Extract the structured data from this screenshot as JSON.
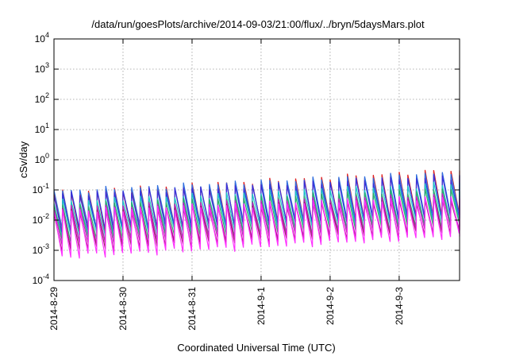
{
  "chart_data": {
    "type": "line",
    "title": "/data/run/goesPlots/archive/2014-09-03/21:00/flux/../bryn/5daysMars.plot",
    "xlabel": "Coordinated Universal Time (UTC)",
    "ylabel": "cSv/day",
    "y_scale": "log",
    "ylim": [
      0.0001,
      10000
    ],
    "y_ticks": [
      {
        "base": "10",
        "exp": "-4",
        "value": 0.0001
      },
      {
        "base": "10",
        "exp": "-3",
        "value": 0.001
      },
      {
        "base": "10",
        "exp": "-2",
        "value": 0.01
      },
      {
        "base": "10",
        "exp": "-1",
        "value": 0.1
      },
      {
        "base": "10",
        "exp": "0",
        "value": 1
      },
      {
        "base": "10",
        "exp": "1",
        "value": 10
      },
      {
        "base": "10",
        "exp": "2",
        "value": 100
      },
      {
        "base": "10",
        "exp": "3",
        "value": 1000
      },
      {
        "base": "10",
        "exp": "4",
        "value": 10000
      }
    ],
    "xlim": [
      "2014-08-29",
      "2014-09-03T21:00"
    ],
    "x_ticks": [
      {
        "label": "2014-8-29",
        "value": "2014-08-29"
      },
      {
        "label": "2014-8-30",
        "value": "2014-08-30"
      },
      {
        "label": "2014-8-31",
        "value": "2014-08-31"
      },
      {
        "label": "2014-9-1",
        "value": "2014-09-01"
      },
      {
        "label": "2014-9-2",
        "value": "2014-09-02"
      },
      {
        "label": "2014-9-3",
        "value": "2014-09-03"
      }
    ],
    "grid": true,
    "legend": "none",
    "series_count": 8,
    "series": [
      {
        "color": "#e02020",
        "peak_start": 0.08,
        "peak_end": 0.45,
        "trough_start": 0.004,
        "trough_end": 0.015
      },
      {
        "color": "#2f6fe0",
        "peak_start": 0.09,
        "peak_end": 0.38,
        "trough_start": 0.005,
        "trough_end": 0.014
      },
      {
        "color": "#3a2fd8",
        "peak_start": 0.07,
        "peak_end": 0.3,
        "trough_start": 0.004,
        "trough_end": 0.012
      },
      {
        "color": "#20c8c8",
        "peak_start": 0.04,
        "peak_end": 0.17,
        "trough_start": 0.003,
        "trough_end": 0.009
      },
      {
        "color": "#2fae6a",
        "peak_start": 0.03,
        "peak_end": 0.11,
        "trough_start": 0.002,
        "trough_end": 0.007
      },
      {
        "color": "#c020c0",
        "peak_start": 0.025,
        "peak_end": 0.07,
        "trough_start": 0.0015,
        "trough_end": 0.005
      },
      {
        "color": "#a0206a",
        "peak_start": 0.02,
        "peak_end": 0.05,
        "trough_start": 0.001,
        "trough_end": 0.004
      },
      {
        "color": "#ff30ff",
        "peak_start": 0.02,
        "peak_end": 0.06,
        "trough_start": 0.0006,
        "trough_end": 0.003
      }
    ],
    "cycle_hours": 3
  }
}
